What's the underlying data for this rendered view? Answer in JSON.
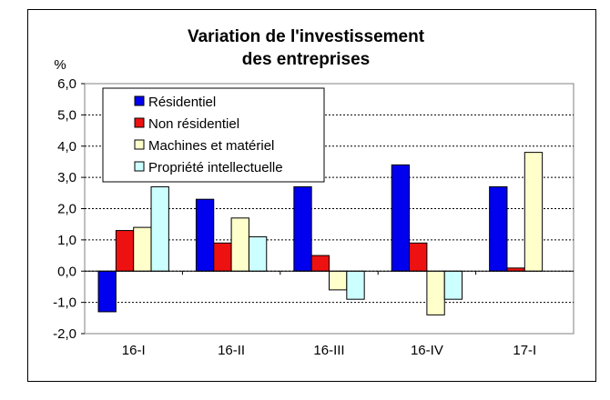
{
  "chart_data": {
    "type": "bar",
    "title_lines": [
      "Variation de l'investissement",
      "des entreprises"
    ],
    "ylabel": "%",
    "categories": [
      "16-I",
      "16-II",
      "16-III",
      "16-IV",
      "17-I"
    ],
    "ylim": [
      -2.0,
      6.0
    ],
    "yticks": [
      "6,0",
      "5,0",
      "4,0",
      "3,0",
      "2,0",
      "1,0",
      "0,0",
      "-1,0",
      "-2,0"
    ],
    "grid": true,
    "legend_position": "top-left",
    "series": [
      {
        "name": "Résidentiel",
        "color": "#0000ee",
        "values": [
          -1.3,
          2.3,
          2.7,
          3.4,
          2.7
        ]
      },
      {
        "name": "Non résidentiel",
        "color": "#ee1111",
        "values": [
          1.3,
          0.9,
          0.5,
          0.9,
          0.1
        ]
      },
      {
        "name": "Machines et matériel",
        "color": "#ffffcc",
        "values": [
          1.4,
          1.7,
          -0.6,
          -1.4,
          3.8
        ]
      },
      {
        "name": "Propriété intellectuelle",
        "color": "#ccffff",
        "values": [
          2.7,
          1.1,
          -0.9,
          -0.9,
          0.0
        ]
      }
    ]
  }
}
